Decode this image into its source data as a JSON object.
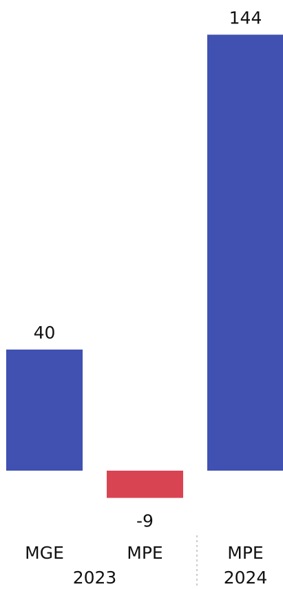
{
  "chart_data": {
    "type": "bar",
    "categories": [
      "MGE",
      "MPE",
      "MPE"
    ],
    "groups": [
      {
        "label": "2023",
        "categories": [
          0,
          1
        ]
      },
      {
        "label": "2024",
        "categories": [
          2
        ]
      }
    ],
    "values": [
      40,
      -9,
      144
    ],
    "value_labels": [
      "40",
      "-9",
      "144"
    ],
    "ylim": [
      -15,
      160
    ],
    "grid": false,
    "title": "",
    "xlabel": "",
    "ylabel": "",
    "colors": {
      "positive": "#4051B1",
      "negative": "#D94452",
      "separator": "#bbbbbb"
    }
  }
}
